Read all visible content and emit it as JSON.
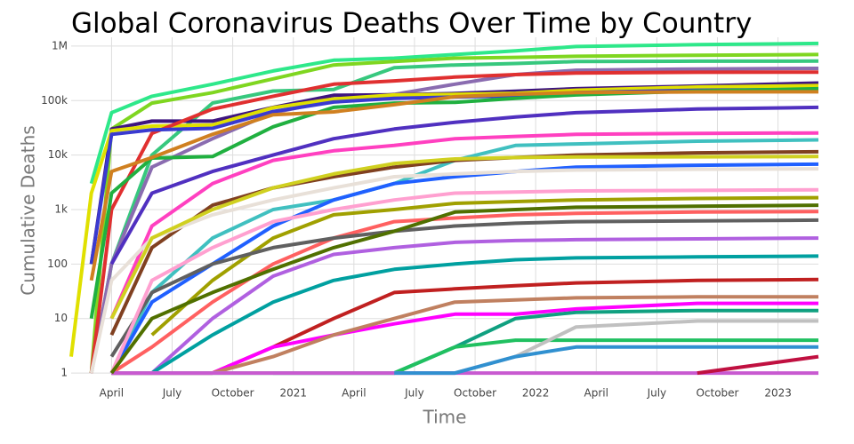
{
  "chart_data": {
    "type": "line",
    "title": "Global Coronavirus Deaths Over Time by Country",
    "xlabel": "Time",
    "ylabel": "Cumulative Deaths",
    "log_y": true,
    "grid": true,
    "x": [
      "2020-02",
      "2020-03",
      "2020-04",
      "2020-06",
      "2020-09",
      "2020-12",
      "2021-03",
      "2021-06",
      "2021-09",
      "2021-12",
      "2022-03",
      "2022-09",
      "2023-03"
    ],
    "xlim": [
      "2020-02",
      "2023-03"
    ],
    "xticks": [
      {
        "value": "2020-04",
        "label": "April"
      },
      {
        "value": "2020-07",
        "label": "July"
      },
      {
        "value": "2020-10",
        "label": "October"
      },
      {
        "value": "2021-01",
        "label": "2021"
      },
      {
        "value": "2021-04",
        "label": "April"
      },
      {
        "value": "2021-07",
        "label": "July"
      },
      {
        "value": "2021-10",
        "label": "October"
      },
      {
        "value": "2022-01",
        "label": "2022"
      },
      {
        "value": "2022-04",
        "label": "April"
      },
      {
        "value": "2022-07",
        "label": "July"
      },
      {
        "value": "2022-10",
        "label": "October"
      },
      {
        "value": "2023-01",
        "label": "2023"
      }
    ],
    "ylim": [
      0.93,
      1450000
    ],
    "yticks": [
      1,
      10,
      100,
      {
        "value": 1000,
        "label": "1k"
      },
      {
        "value": 10000,
        "label": "10k"
      },
      {
        "value": 100000,
        "label": "100k"
      },
      {
        "value": 1000000,
        "label": "1M"
      }
    ],
    "series": [
      {
        "color": "#2ee88a",
        "values": [
          null,
          3000,
          60000,
          120000,
          200000,
          350000,
          550000,
          600000,
          700000,
          820000,
          980000,
          1060000,
          1120000
        ]
      },
      {
        "color": "#7fd620",
        "values": [
          null,
          1,
          30000,
          90000,
          140000,
          250000,
          450000,
          520000,
          600000,
          620000,
          650000,
          680000,
          700000
        ]
      },
      {
        "color": "#37c87e",
        "values": [
          null,
          1,
          100,
          10000,
          90000,
          150000,
          160000,
          400000,
          450000,
          480000,
          520000,
          528000,
          530000
        ]
      },
      {
        "color": "#8a6cb0",
        "values": [
          null,
          1,
          100,
          6000,
          20000,
          60000,
          100000,
          130000,
          200000,
          300000,
          360000,
          380000,
          390000
        ]
      },
      {
        "color": "#3e1580",
        "values": [
          null,
          100,
          30000,
          42000,
          42000,
          75000,
          125000,
          128000,
          135000,
          148000,
          165000,
          185000,
          210000
        ]
      },
      {
        "color": "#e0e000",
        "values": [
          2,
          2000,
          28000,
          34000,
          35600,
          74000,
          107000,
          127000,
          130000,
          136000,
          155000,
          177000,
          188000
        ]
      },
      {
        "color": "#e03030",
        "values": [
          null,
          1,
          1000,
          25000,
          70000,
          120000,
          200000,
          230000,
          270000,
          300000,
          320000,
          330000,
          333000
        ]
      },
      {
        "color": "#3a3ad0",
        "values": [
          null,
          100,
          24000,
          29000,
          31000,
          63000,
          94000,
          110000,
          116000,
          122000,
          140000,
          155000,
          160000
        ]
      },
      {
        "color": "#20b040",
        "values": [
          null,
          10,
          2000,
          8800,
          9400,
          33000,
          75000,
          90000,
          93000,
          110000,
          127000,
          150000,
          165000
        ]
      },
      {
        "color": "#d08020",
        "values": [
          null,
          50,
          5000,
          9000,
          24000,
          55000,
          62000,
          84000,
          118000,
          131000,
          140000,
          144000,
          145000
        ]
      },
      {
        "color": "#ff40c0",
        "values": [
          null,
          null,
          10,
          500,
          3000,
          8000,
          12000,
          15000,
          20000,
          22000,
          24000,
          25000,
          25500
        ]
      },
      {
        "color": "#40c0c0",
        "values": [
          null,
          null,
          1,
          30,
          300,
          1000,
          1500,
          3000,
          8000,
          15000,
          16000,
          18000,
          19000
        ]
      },
      {
        "color": "#804020",
        "values": [
          null,
          null,
          5,
          200,
          1200,
          2500,
          4000,
          6000,
          8000,
          9000,
          10000,
          11000,
          11500
        ]
      },
      {
        "color": "#2060ff",
        "values": [
          null,
          null,
          1,
          20,
          100,
          500,
          1500,
          3000,
          4000,
          5000,
          6000,
          6500,
          6800
        ]
      },
      {
        "color": "#e8e0d8",
        "values": [
          null,
          1,
          50,
          300,
          800,
          1500,
          2500,
          4000,
          4500,
          5000,
          5300,
          5500,
          5600
        ]
      },
      {
        "color": "#a0a000",
        "values": [
          null,
          null,
          null,
          5,
          50,
          300,
          800,
          1000,
          1300,
          1400,
          1500,
          1600,
          1650
        ]
      },
      {
        "color": "#ff6060",
        "values": [
          null,
          null,
          1,
          3,
          20,
          100,
          300,
          600,
          700,
          800,
          850,
          900,
          920
        ]
      },
      {
        "color": "#606060",
        "values": [
          null,
          null,
          2,
          30,
          100,
          200,
          300,
          400,
          500,
          560,
          600,
          620,
          640
        ]
      },
      {
        "color": "#b060e0",
        "values": [
          null,
          null,
          1,
          1,
          10,
          60,
          150,
          200,
          250,
          270,
          280,
          290,
          300
        ]
      },
      {
        "color": "#00a0a0",
        "values": [
          null,
          null,
          null,
          1,
          5,
          20,
          50,
          80,
          100,
          120,
          130,
          135,
          140
        ]
      },
      {
        "color": "#c02020",
        "values": [
          null,
          null,
          1,
          1,
          1,
          3,
          10,
          30,
          35,
          40,
          45,
          50,
          52
        ]
      },
      {
        "color": "#10a080",
        "values": [
          null,
          null,
          null,
          null,
          null,
          1,
          1,
          1,
          3,
          10,
          13,
          14,
          14
        ]
      },
      {
        "color": "#ff00ff",
        "values": [
          null,
          null,
          1,
          1,
          1,
          3,
          5,
          8,
          12,
          12,
          15,
          19,
          19
        ]
      },
      {
        "color": "#c08060",
        "values": [
          null,
          null,
          null,
          null,
          1,
          2,
          5,
          10,
          20,
          22,
          24,
          25,
          25
        ]
      },
      {
        "color": "#20c060",
        "values": [
          null,
          null,
          1,
          1,
          1,
          1,
          1,
          1,
          3,
          4,
          4,
          4,
          4
        ]
      },
      {
        "color": "#c0c0c0",
        "values": [
          null,
          null,
          1,
          1,
          1,
          1,
          1,
          1,
          1,
          2,
          7,
          9,
          9
        ]
      },
      {
        "color": "#c85ad0",
        "values": [
          null,
          null,
          1,
          1,
          1,
          1,
          1,
          1,
          1,
          1,
          1,
          1,
          1
        ]
      },
      {
        "color": "#c01040",
        "values": [
          null,
          null,
          null,
          null,
          null,
          null,
          null,
          null,
          null,
          null,
          null,
          1,
          2
        ]
      },
      {
        "color": "#3090d0",
        "values": [
          null,
          null,
          null,
          null,
          null,
          null,
          null,
          1,
          1,
          2,
          3,
          3,
          3
        ]
      },
      {
        "color": "#ffa0d0",
        "values": [
          null,
          null,
          1,
          50,
          200,
          600,
          1000,
          1500,
          2000,
          2100,
          2200,
          2250,
          2300
        ]
      },
      {
        "color": "#507000",
        "values": [
          null,
          null,
          1,
          10,
          30,
          80,
          200,
          400,
          900,
          1000,
          1100,
          1150,
          1200
        ]
      },
      {
        "color": "#5030c0",
        "values": [
          null,
          null,
          100,
          2000,
          5000,
          10000,
          20000,
          30000,
          40000,
          50000,
          60000,
          70000,
          75000
        ]
      },
      {
        "color": "#d0d020",
        "values": [
          null,
          null,
          10,
          300,
          1000,
          2500,
          4500,
          7000,
          8500,
          9000,
          9200,
          9300,
          9400
        ]
      }
    ]
  }
}
